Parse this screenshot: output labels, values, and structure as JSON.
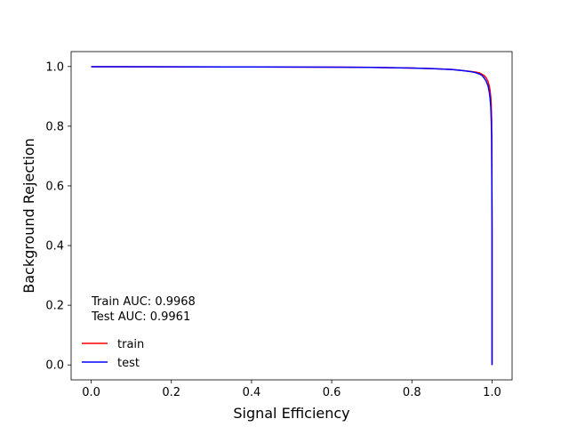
{
  "chart_data": {
    "type": "line",
    "title": "",
    "xlabel": "Signal Efficiency",
    "ylabel": "Background Rejection",
    "xlim": [
      -0.05,
      1.05
    ],
    "ylim": [
      -0.05,
      1.05
    ],
    "xticks": [
      "0.0",
      "0.2",
      "0.4",
      "0.6",
      "0.8",
      "1.0"
    ],
    "yticks": [
      "0.0",
      "0.2",
      "0.4",
      "0.6",
      "0.8",
      "1.0"
    ],
    "xtick_values": [
      0.0,
      0.2,
      0.4,
      0.6,
      0.8,
      1.0
    ],
    "ytick_values": [
      0.0,
      0.2,
      0.4,
      0.6,
      0.8,
      1.0
    ],
    "grid": false,
    "legend_position": "lower-left",
    "annotations": {
      "train_auc": "Train AUC: 0.9968",
      "test_auc": "Test AUC: 0.9961"
    },
    "series": [
      {
        "name": "train",
        "color": "#ff0000",
        "x": [
          0.0,
          0.2,
          0.4,
          0.6,
          0.7,
          0.8,
          0.85,
          0.9,
          0.93,
          0.95,
          0.96,
          0.97,
          0.98,
          0.985,
          0.99,
          0.993,
          0.995,
          0.997,
          0.998,
          0.999,
          1.0,
          1.0
        ],
        "y": [
          0.9995,
          0.999,
          0.9985,
          0.998,
          0.997,
          0.995,
          0.993,
          0.99,
          0.986,
          0.983,
          0.981,
          0.978,
          0.97,
          0.963,
          0.95,
          0.935,
          0.92,
          0.895,
          0.87,
          0.82,
          0.5,
          0.0
        ]
      },
      {
        "name": "test",
        "color": "#0000ff",
        "x": [
          0.0,
          0.2,
          0.4,
          0.6,
          0.7,
          0.8,
          0.85,
          0.9,
          0.93,
          0.95,
          0.96,
          0.97,
          0.975,
          0.98,
          0.985,
          0.99,
          0.993,
          0.995,
          0.997,
          0.998,
          0.999,
          1.0,
          1.0
        ],
        "y": [
          0.9995,
          0.999,
          0.9985,
          0.998,
          0.997,
          0.995,
          0.993,
          0.99,
          0.986,
          0.982,
          0.979,
          0.974,
          0.97,
          0.962,
          0.952,
          0.935,
          0.915,
          0.895,
          0.86,
          0.82,
          0.76,
          0.45,
          0.0
        ]
      }
    ]
  }
}
